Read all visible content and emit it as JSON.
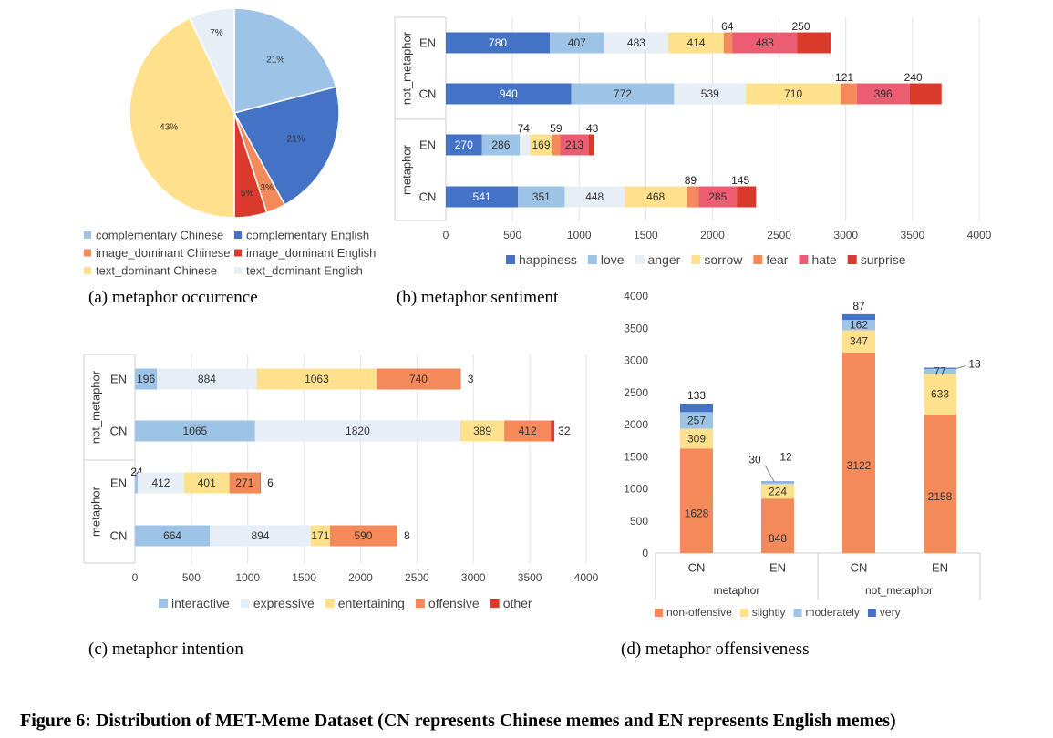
{
  "figure_caption": "Figure 6: Distribution of MET-Meme Dataset (CN represents Chinese memes and EN represents English memes)",
  "chart_data": [
    {
      "id": "a",
      "type": "pie",
      "caption": "(a) metaphor occurrence",
      "slices": [
        {
          "name": "complementary Chinese",
          "value": 21,
          "label": "21%",
          "color": "#9dc3e6"
        },
        {
          "name": "complementary English",
          "value": 21,
          "label": "21%",
          "color": "#4472c4"
        },
        {
          "name": "image_dominant Chinese",
          "value": 3,
          "label": "3%",
          "color": "#f4895a"
        },
        {
          "name": "image_dominant English",
          "value": 5,
          "label": "5%",
          "color": "#d93a2b"
        },
        {
          "name": "text_dominant Chinese",
          "value": 43,
          "label": "43%",
          "color": "#ffe08c"
        },
        {
          "name": "text_dominant English",
          "value": 7,
          "label": "7%",
          "color": "#e6eef6"
        }
      ]
    },
    {
      "id": "b",
      "type": "bar",
      "orientation": "horizontal",
      "stacked": true,
      "caption": "(b) metaphor sentiment",
      "groups": [
        "not_metaphor",
        "metaphor"
      ],
      "categories": [
        "EN",
        "CN",
        "EN",
        "CN"
      ],
      "xlim": [
        0,
        4000
      ],
      "xticks": [
        0,
        500,
        1000,
        1500,
        2000,
        2500,
        3000,
        3500,
        4000
      ],
      "grid": true,
      "legend": "bottom",
      "series": [
        {
          "name": "happiness",
          "color": "#4472c4",
          "values": [
            780,
            940,
            270,
            541
          ]
        },
        {
          "name": "love",
          "color": "#9dc3e6",
          "values": [
            407,
            772,
            286,
            351
          ]
        },
        {
          "name": "anger",
          "color": "#e6eef6",
          "values": [
            483,
            539,
            74,
            448
          ]
        },
        {
          "name": "sorrow",
          "color": "#ffe08c",
          "values": [
            414,
            710,
            169,
            468
          ]
        },
        {
          "name": "fear",
          "color": "#f4895a",
          "values": [
            64,
            121,
            59,
            89
          ]
        },
        {
          "name": "hate",
          "color": "#ec5c72",
          "values": [
            488,
            396,
            213,
            285
          ]
        },
        {
          "name": "surprise",
          "color": "#d93a2b",
          "values": [
            250,
            240,
            43,
            145
          ]
        }
      ]
    },
    {
      "id": "c",
      "type": "bar",
      "orientation": "horizontal",
      "stacked": true,
      "caption": "(c) metaphor intention",
      "groups": [
        "not_metaphor",
        "metaphor"
      ],
      "categories": [
        "EN",
        "CN",
        "EN",
        "CN"
      ],
      "xlim": [
        0,
        4000
      ],
      "xticks": [
        0,
        500,
        1000,
        1500,
        2000,
        2500,
        3000,
        3500,
        4000
      ],
      "grid": true,
      "legend": "bottom",
      "series": [
        {
          "name": "interactive",
          "color": "#9dc3e6",
          "values": [
            196,
            1065,
            24,
            664
          ]
        },
        {
          "name": "expressive",
          "color": "#e6eef6",
          "values": [
            884,
            1820,
            412,
            894
          ]
        },
        {
          "name": "entertaining",
          "color": "#ffe08c",
          "values": [
            1063,
            389,
            401,
            171
          ]
        },
        {
          "name": "offensive",
          "color": "#f4895a",
          "values": [
            740,
            412,
            271,
            590
          ]
        },
        {
          "name": "other",
          "color": "#d93a2b",
          "values": [
            3,
            32,
            6,
            8
          ]
        }
      ]
    },
    {
      "id": "d",
      "type": "bar",
      "orientation": "vertical",
      "stacked": true,
      "caption": "(d) metaphor offensiveness",
      "groups": [
        "metaphor",
        "not_metaphor"
      ],
      "categories": [
        "CN",
        "EN",
        "CN",
        "EN"
      ],
      "ylim": [
        0,
        4000
      ],
      "yticks": [
        0,
        500,
        1000,
        1500,
        2000,
        2500,
        3000,
        3500,
        4000
      ],
      "grid": false,
      "legend": "bottom",
      "series": [
        {
          "name": "non-offensive",
          "color": "#f4895a",
          "values": [
            1628,
            848,
            3122,
            2158
          ]
        },
        {
          "name": "slightly",
          "color": "#ffe08c",
          "values": [
            309,
            224,
            347,
            633
          ]
        },
        {
          "name": "moderately",
          "color": "#9dc3e6",
          "values": [
            257,
            30,
            162,
            77
          ]
        },
        {
          "name": "very",
          "color": "#4472c4",
          "values": [
            133,
            12,
            87,
            18
          ]
        }
      ]
    }
  ]
}
